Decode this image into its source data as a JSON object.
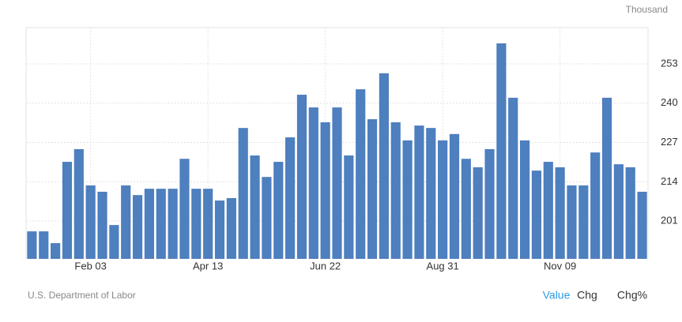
{
  "chart_data": {
    "type": "bar",
    "unit": "Thousand",
    "source": "U.S. Department of Labor",
    "categories": [
      null,
      null,
      null,
      null,
      null,
      "Feb 03",
      null,
      null,
      null,
      null,
      null,
      null,
      null,
      null,
      null,
      "Apr 13",
      null,
      null,
      null,
      null,
      null,
      null,
      null,
      null,
      null,
      "Jun 22",
      null,
      null,
      null,
      null,
      null,
      null,
      null,
      null,
      null,
      "Aug 31",
      null,
      null,
      null,
      null,
      null,
      null,
      null,
      null,
      null,
      "Nov 09",
      null,
      null,
      null,
      null,
      null,
      null,
      null
    ],
    "values": [
      197.6,
      197.6,
      193.7,
      220.6,
      224.8,
      212.8,
      210.7,
      199.7,
      212.8,
      209.6,
      211.7,
      211.7,
      211.7,
      221.6,
      211.7,
      211.7,
      207.8,
      208.6,
      231.8,
      222.7,
      215.6,
      220.6,
      228.7,
      242.8,
      238.6,
      233.7,
      238.6,
      222.7,
      244.6,
      234.7,
      249.9,
      233.7,
      227.7,
      232.6,
      231.8,
      227.7,
      229.8,
      221.6,
      218.8,
      224.8,
      259.8,
      241.8,
      227.7,
      217.7,
      220.6,
      218.8,
      212.8,
      212.8,
      223.7,
      241.8,
      219.8,
      218.8,
      210.7
    ],
    "color": "#4e7fbe",
    "ylim": [
      188.5,
      265
    ],
    "yticks": [
      201,
      214,
      227,
      240,
      253
    ],
    "grid": true
  },
  "controls": {
    "tabs": [
      "Value",
      "Chg",
      "Chg%"
    ],
    "active": 0
  }
}
